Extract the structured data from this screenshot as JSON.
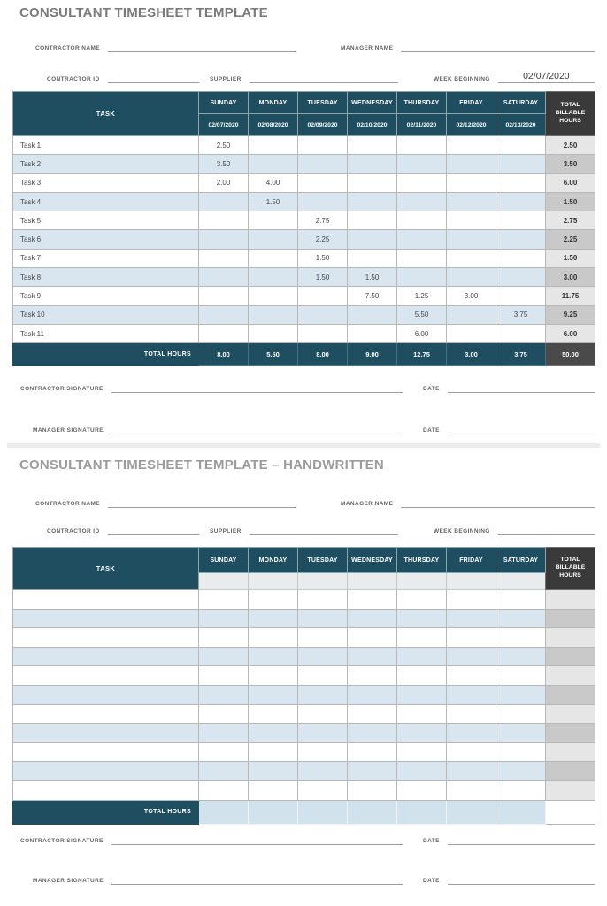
{
  "section1": {
    "title": "CONSULTANT TIMESHEET TEMPLATE",
    "fields": {
      "contractor_name_label": "CONTRACTOR NAME",
      "manager_name_label": "MANAGER NAME",
      "contractor_id_label": "CONTRACTOR ID",
      "supplier_label": "SUPPLIER",
      "week_beginning_label": "WEEK BEGINNING",
      "week_beginning_value": "02/07/2020"
    },
    "table": {
      "task_header": "TASK",
      "total_header": "TOTAL BILLABLE HOURS",
      "days": [
        {
          "name": "SUNDAY",
          "date": "02/07/2020"
        },
        {
          "name": "MONDAY",
          "date": "02/08/2020"
        },
        {
          "name": "TUESDAY",
          "date": "02/09/2020"
        },
        {
          "name": "WEDNESDAY",
          "date": "02/10/2020"
        },
        {
          "name": "THURSDAY",
          "date": "02/11/2020"
        },
        {
          "name": "FRIDAY",
          "date": "02/12/2020"
        },
        {
          "name": "SATURDAY",
          "date": "02/13/2020"
        }
      ],
      "rows": [
        {
          "task": "Task 1",
          "values": [
            "2.50",
            "",
            "",
            "",
            "",
            "",
            ""
          ],
          "total": "2.50"
        },
        {
          "task": "Task 2",
          "values": [
            "3.50",
            "",
            "",
            "",
            "",
            "",
            ""
          ],
          "total": "3.50"
        },
        {
          "task": "Task 3",
          "values": [
            "2.00",
            "4.00",
            "",
            "",
            "",
            "",
            ""
          ],
          "total": "6.00"
        },
        {
          "task": "Task 4",
          "values": [
            "",
            "1.50",
            "",
            "",
            "",
            "",
            ""
          ],
          "total": "1.50"
        },
        {
          "task": "Task 5",
          "values": [
            "",
            "",
            "2.75",
            "",
            "",
            "",
            ""
          ],
          "total": "2.75"
        },
        {
          "task": "Task 6",
          "values": [
            "",
            "",
            "2.25",
            "",
            "",
            "",
            ""
          ],
          "total": "2.25"
        },
        {
          "task": "Task 7",
          "values": [
            "",
            "",
            "1.50",
            "",
            "",
            "",
            ""
          ],
          "total": "1.50"
        },
        {
          "task": "Task 8",
          "values": [
            "",
            "",
            "1.50",
            "1.50",
            "",
            "",
            ""
          ],
          "total": "3.00"
        },
        {
          "task": "Task 9",
          "values": [
            "",
            "",
            "",
            "7.50",
            "1.25",
            "3.00",
            ""
          ],
          "total": "11.75"
        },
        {
          "task": "Task 10",
          "values": [
            "",
            "",
            "",
            "",
            "5.50",
            "",
            "3.75"
          ],
          "total": "9.25"
        },
        {
          "task": "Task 11",
          "values": [
            "",
            "",
            "",
            "",
            "6.00",
            "",
            ""
          ],
          "total": "6.00"
        }
      ],
      "total_row": {
        "label": "TOTAL HOURS",
        "values": [
          "8.00",
          "5.50",
          "8.00",
          "9.00",
          "12.75",
          "3.00",
          "3.75"
        ],
        "total": "50.00"
      }
    },
    "signatures": {
      "contractor_label": "CONTRACTOR SIGNATURE",
      "manager_label": "MANAGER SIGNATURE",
      "date_label": "DATE"
    }
  },
  "section2": {
    "title": "CONSULTANT TIMESHEET TEMPLATE – HANDWRITTEN",
    "fields": {
      "contractor_name_label": "CONTRACTOR NAME",
      "manager_name_label": "MANAGER NAME",
      "contractor_id_label": "CONTRACTOR ID",
      "supplier_label": "SUPPLIER",
      "week_beginning_label": "WEEK BEGINNING",
      "week_beginning_value": ""
    },
    "table": {
      "task_header": "TASK",
      "total_header": "TOTAL BILLABLE HOURS",
      "days": [
        "SUNDAY",
        "MONDAY",
        "TUESDAY",
        "WEDNESDAY",
        "THURSDAY",
        "FRIDAY",
        "SATURDAY"
      ],
      "empty_row_count": 11,
      "total_row_label": "TOTAL HOURS"
    },
    "signatures": {
      "contractor_label": "CONTRACTOR SIGNATURE",
      "manager_label": "MANAGER SIGNATURE",
      "date_label": "DATE"
    }
  },
  "colors": {
    "header_navy": "#1f4e61",
    "header_charcoal": "#3a3a3a",
    "row_stripe_blue": "#d9e6ef",
    "total_column_gray": "#c9c9c9",
    "grand_total_gray": "#4a4a4a"
  }
}
